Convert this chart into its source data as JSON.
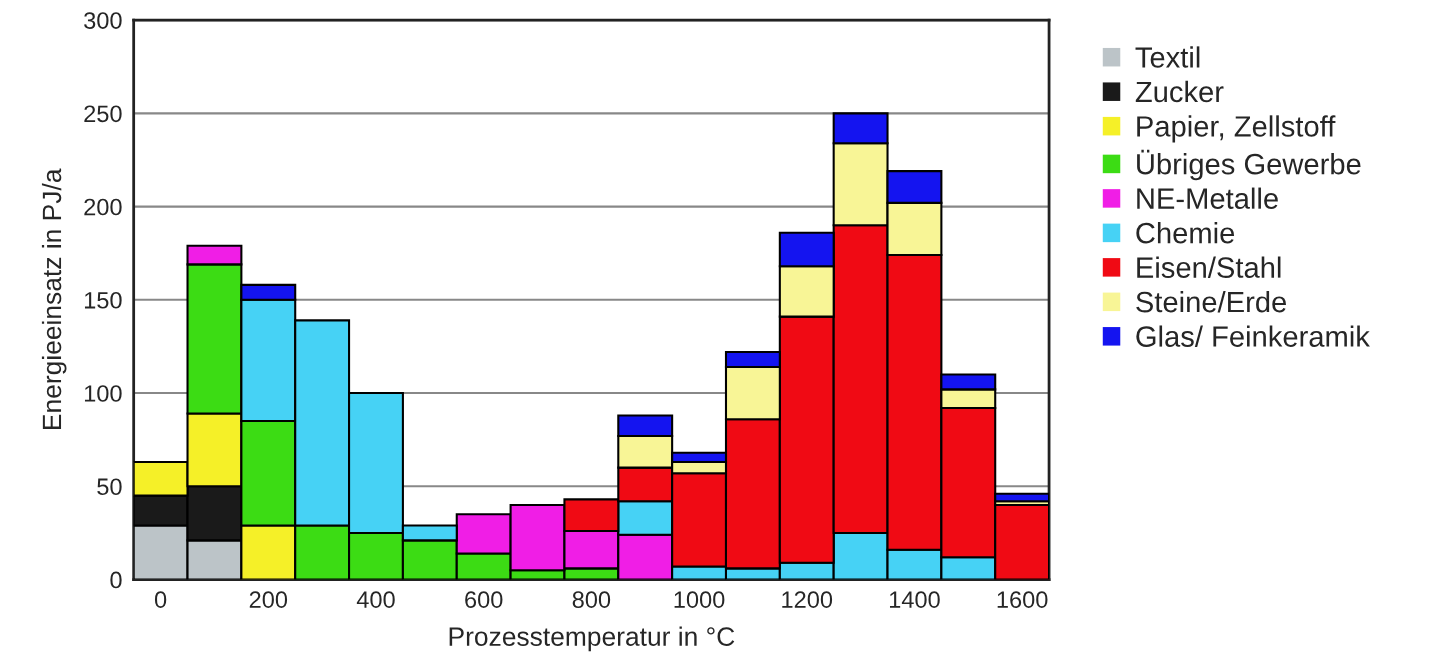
{
  "chart_data": {
    "type": "bar",
    "stacked": true,
    "xlabel": "Prozesstemperatur in °C",
    "ylabel": "Energieeinsatz in PJ/a",
    "x": [
      0,
      100,
      200,
      300,
      400,
      500,
      600,
      700,
      800,
      900,
      1000,
      1100,
      1200,
      1300,
      1400,
      1500,
      1600
    ],
    "xlim": [
      -50,
      1650
    ],
    "xticks": [
      0,
      200,
      400,
      600,
      800,
      1000,
      1200,
      1400,
      1600
    ],
    "ylim": [
      0,
      300
    ],
    "yticks": [
      0,
      50,
      100,
      150,
      200,
      250,
      300
    ],
    "grid": "y",
    "legend": "right",
    "series": [
      {
        "name": "Textil",
        "color": "#bcc4c8",
        "values": [
          29,
          21,
          null,
          null,
          null,
          null,
          null,
          null,
          null,
          null,
          null,
          null,
          null,
          null,
          null,
          null,
          null
        ]
      },
      {
        "name": "Zucker",
        "color": "#1a1a1a",
        "values": [
          16,
          29,
          null,
          null,
          null,
          null,
          null,
          null,
          null,
          null,
          null,
          null,
          null,
          null,
          null,
          null,
          null
        ]
      },
      {
        "name": "Papier, Zellstoff",
        "color": "#f5f028",
        "values": [
          18,
          39,
          29,
          null,
          null,
          null,
          null,
          null,
          null,
          null,
          null,
          null,
          null,
          null,
          null,
          null,
          null
        ]
      },
      {
        "name": "Übriges Gewerbe",
        "color": "#3cdc14",
        "values": [
          null,
          80,
          56,
          29,
          25,
          21,
          14,
          5,
          6,
          null,
          null,
          null,
          null,
          null,
          null,
          null,
          null
        ]
      },
      {
        "name": "NE-Metalle",
        "color": "#f01ee6",
        "values": [
          null,
          10,
          null,
          null,
          null,
          null,
          21,
          35,
          20,
          24,
          null,
          null,
          null,
          null,
          null,
          null,
          null
        ]
      },
      {
        "name": "Chemie",
        "color": "#46d2f5",
        "values": [
          null,
          null,
          65,
          110,
          75,
          8,
          null,
          null,
          null,
          18,
          7,
          6,
          9,
          25,
          16,
          12,
          null
        ]
      },
      {
        "name": "Eisen/Stahl",
        "color": "#f00a14",
        "values": [
          null,
          null,
          null,
          null,
          null,
          null,
          null,
          null,
          17,
          18,
          50,
          80,
          132,
          165,
          158,
          80,
          40
        ]
      },
      {
        "name": "Steine/Erde",
        "color": "#f8f596",
        "values": [
          null,
          null,
          null,
          null,
          null,
          null,
          null,
          null,
          null,
          17,
          6,
          28,
          27,
          44,
          28,
          10,
          2
        ]
      },
      {
        "name": "Glas/ Feinkeramik",
        "color": "#1414f0",
        "values": [
          null,
          null,
          8,
          null,
          null,
          null,
          null,
          null,
          null,
          11,
          5,
          8,
          18,
          16,
          17,
          8,
          4
        ]
      }
    ]
  }
}
